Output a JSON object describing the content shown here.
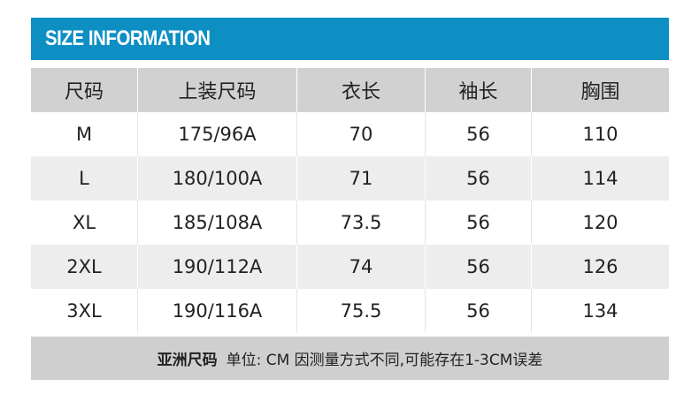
{
  "banner": {
    "title": "SIZE INFORMATION"
  },
  "table": {
    "headers": [
      "尺码",
      "上装尺码",
      "衣长",
      "袖长",
      "胸围"
    ],
    "rows": [
      [
        "M",
        "175/96A",
        "70",
        "56",
        "110"
      ],
      [
        "L",
        "180/100A",
        "71",
        "56",
        "114"
      ],
      [
        "XL",
        "185/108A",
        "73.5",
        "56",
        "120"
      ],
      [
        "2XL",
        "190/112A",
        "74",
        "56",
        "126"
      ],
      [
        "3XL",
        "190/116A",
        "75.5",
        "56",
        "134"
      ]
    ]
  },
  "footer": {
    "label": "亚洲尺码",
    "note": "单位: CM  因测量方式不同,可能存在1-3CM误差"
  },
  "colors": {
    "banner": "#0d8fc4",
    "header": "#d1d1d1",
    "stripe": "#ededed",
    "footer": "#cfcfcf"
  }
}
